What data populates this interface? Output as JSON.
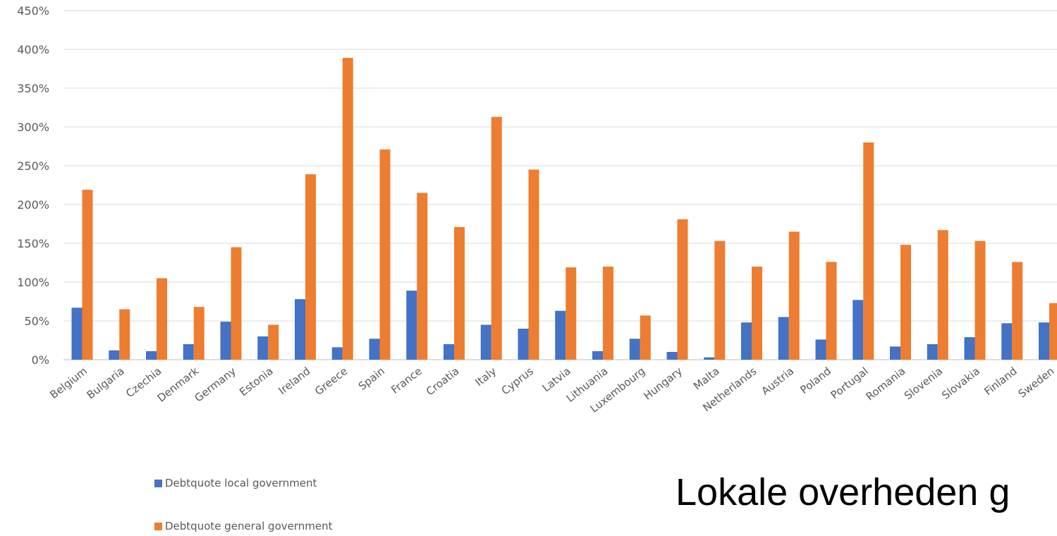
{
  "chart_data": {
    "type": "bar",
    "categories": [
      "Belgium",
      "Bulgaria",
      "Czechia",
      "Denmark",
      "Germany",
      "Estonia",
      "Ireland",
      "Greece",
      "Spain",
      "France",
      "Croatia",
      "Italy",
      "Cyprus",
      "Latvia",
      "Lithuania",
      "Luxembourg",
      "Hungary",
      "Malta",
      "Netherlands",
      "Austria",
      "Poland",
      "Portugal",
      "Romania",
      "Slovenia",
      "Slovakia",
      "Finland",
      "Sweden"
    ],
    "series": [
      {
        "name": "Debtquote local government",
        "color": "#4472c4",
        "values": [
          67,
          12,
          11,
          20,
          49,
          30,
          78,
          16,
          27,
          89,
          20,
          45,
          40,
          63,
          11,
          27,
          10,
          3,
          48,
          55,
          26,
          77,
          17,
          20,
          29,
          47,
          48
        ]
      },
      {
        "name": "Debtquote general government",
        "color": "#ed7d31",
        "values": [
          219,
          65,
          105,
          68,
          145,
          45,
          239,
          389,
          271,
          215,
          171,
          313,
          245,
          119,
          120,
          57,
          181,
          153,
          120,
          165,
          126,
          280,
          148,
          167,
          153,
          126,
          73
        ]
      }
    ],
    "ylim": [
      0,
      450
    ],
    "yticks": [
      "0%",
      "50%",
      "100%",
      "150%",
      "200%",
      "250%",
      "300%",
      "350%",
      "400%",
      "450%"
    ],
    "grid": true,
    "legend_position": "bottom-left"
  },
  "overlay_text": "Lokale overheden g"
}
